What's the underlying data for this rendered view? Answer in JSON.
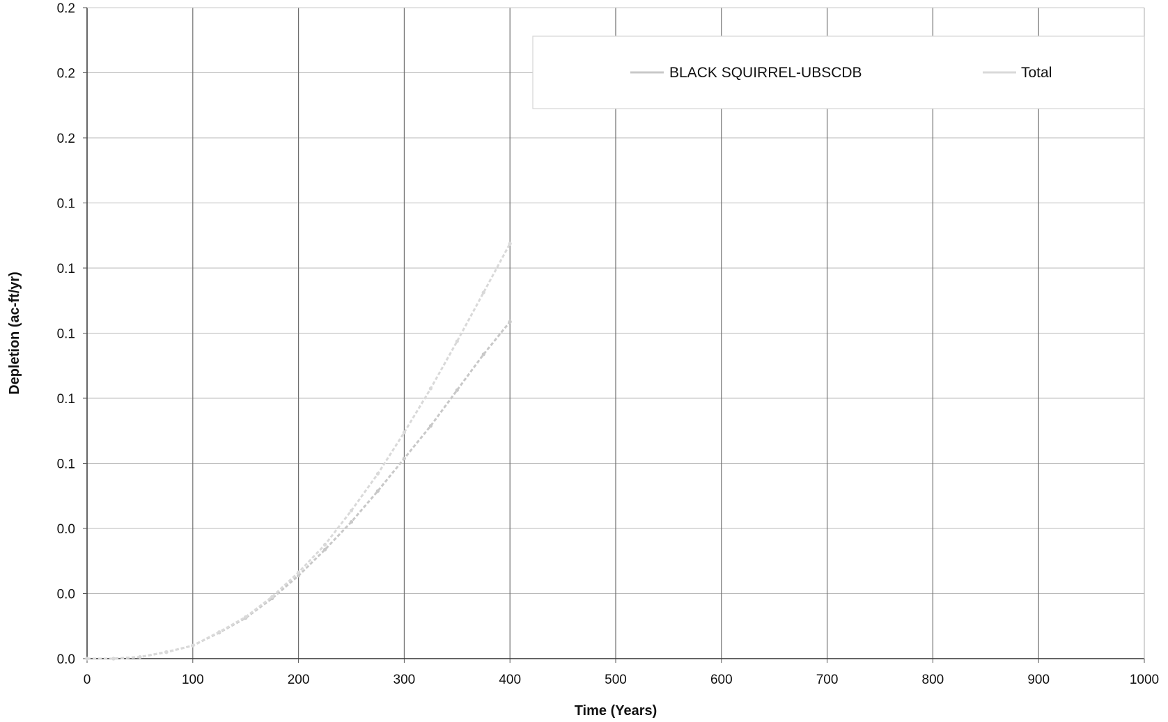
{
  "chart_data": {
    "type": "line",
    "xlabel": "Time (Years)",
    "ylabel": "Depletion (ac-ft/yr)",
    "xlim": [
      0,
      1000
    ],
    "ylim": [
      0,
      0.2
    ],
    "x_ticks": [
      0,
      100,
      200,
      300,
      400,
      500,
      600,
      700,
      800,
      900,
      1000
    ],
    "x_tick_labels": [
      "0",
      "100",
      "200",
      "300",
      "400",
      "500",
      "600",
      "700",
      "800",
      "900",
      "1000"
    ],
    "y_ticks": [
      0,
      0.02,
      0.04,
      0.06,
      0.08,
      0.1,
      0.12,
      0.14,
      0.16,
      0.18,
      0.2
    ],
    "y_tick_labels": [
      "0.0",
      "0.0",
      "0.0",
      "0.1",
      "0.1",
      "0.1",
      "0.1",
      "0.1",
      "0.2",
      "0.2",
      "0.2"
    ],
    "grid": true,
    "legend_position": "top-right",
    "series": [
      {
        "name": "BLACK SQUIRREL-UBSCDB",
        "color": "#c8c8c8",
        "x": [
          0,
          25,
          50,
          75,
          100,
          125,
          150,
          175,
          200,
          225,
          250,
          275,
          300,
          325,
          350,
          375,
          400
        ],
        "y": [
          0,
          0,
          0.0005,
          0.002,
          0.004,
          0.008,
          0.0125,
          0.0185,
          0.0255,
          0.0335,
          0.042,
          0.0515,
          0.0615,
          0.0715,
          0.0825,
          0.0935,
          0.1035
        ]
      },
      {
        "name": "Total",
        "color": "#d9d9d9",
        "x": [
          0,
          25,
          50,
          75,
          100,
          125,
          150,
          175,
          200,
          225,
          250,
          275,
          300,
          325,
          350,
          375,
          400
        ],
        "y": [
          0,
          0,
          0.0005,
          0.002,
          0.004,
          0.0082,
          0.0128,
          0.019,
          0.0265,
          0.035,
          0.0455,
          0.0568,
          0.0695,
          0.083,
          0.0975,
          0.1125,
          0.1275
        ]
      }
    ]
  }
}
